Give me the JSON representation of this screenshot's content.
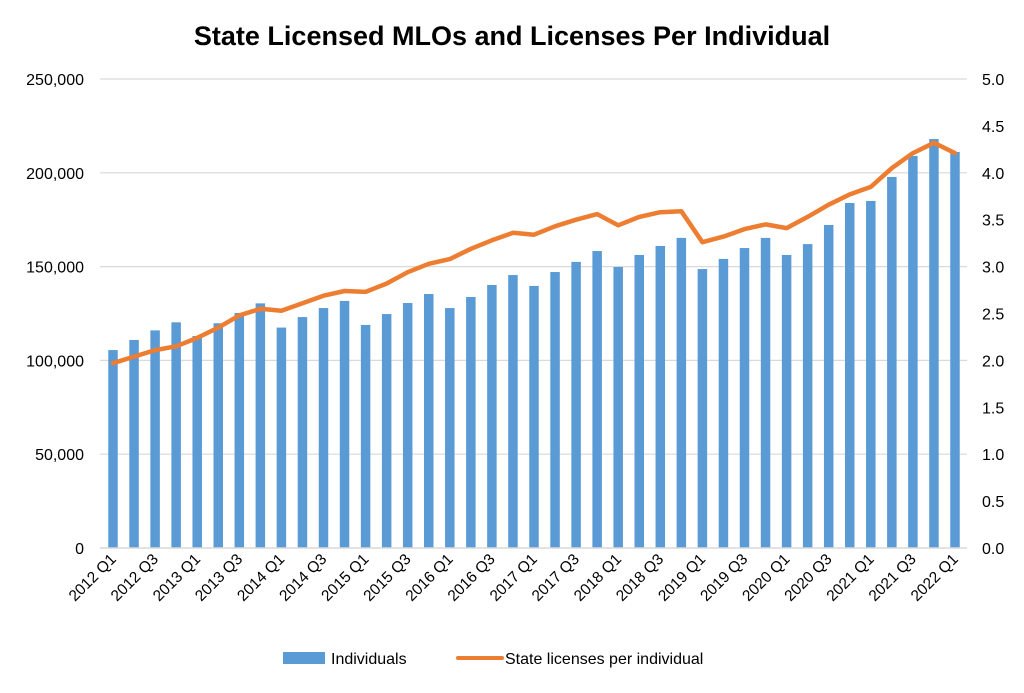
{
  "chart_data": {
    "type": "bar",
    "title": "State Licensed MLOs and Licenses Per Individual",
    "xlabel": "",
    "ylabel": "",
    "y2label": "",
    "ylim": [
      0,
      250000
    ],
    "y2lim": [
      0,
      5.0
    ],
    "yticks": [
      "0",
      "50,000",
      "100,000",
      "150,000",
      "200,000",
      "250,000"
    ],
    "ytick_values": [
      0,
      50000,
      100000,
      150000,
      200000,
      250000
    ],
    "y2ticks": [
      "0.0",
      "0.5",
      "1.0",
      "1.5",
      "2.0",
      "2.5",
      "3.0",
      "3.5",
      "4.0",
      "4.5",
      "5.0"
    ],
    "y2tick_values": [
      0,
      0.5,
      1.0,
      1.5,
      2.0,
      2.5,
      3.0,
      3.5,
      4.0,
      4.5,
      5.0
    ],
    "grid": true,
    "legend_position": "bottom",
    "categories": [
      "2012 Q1",
      "2012 Q2",
      "2012 Q3",
      "2012 Q4",
      "2013 Q1",
      "2013 Q2",
      "2013 Q3",
      "2013 Q4",
      "2014 Q1",
      "2014 Q2",
      "2014 Q3",
      "2014 Q4",
      "2015 Q1",
      "2015 Q2",
      "2015 Q3",
      "2015 Q4",
      "2016 Q1",
      "2016 Q2",
      "2016 Q3",
      "2016 Q4",
      "2017 Q1",
      "2017 Q2",
      "2017 Q3",
      "2017 Q4",
      "2018 Q1",
      "2018 Q2",
      "2018 Q3",
      "2018 Q4",
      "2019 Q1",
      "2019 Q2",
      "2019 Q3",
      "2019 Q4",
      "2020 Q1",
      "2020 Q2",
      "2020 Q3",
      "2020 Q4",
      "2021 Q1",
      "2021 Q2",
      "2021 Q3",
      "2021 Q4",
      "2022 Q1"
    ],
    "xtick_labels_shown": [
      "2012 Q1",
      "2012 Q3",
      "2013 Q1",
      "2013 Q3",
      "2014 Q1",
      "2014 Q3",
      "2015 Q1",
      "2015 Q3",
      "2016 Q1",
      "2016 Q3",
      "2017 Q1",
      "2017 Q3",
      "2018 Q1",
      "2018 Q3",
      "2019 Q1",
      "2019 Q3",
      "2020 Q1",
      "2020 Q3",
      "2021 Q1",
      "2021 Q3",
      "2022 Q1"
    ],
    "series": [
      {
        "name": "Individuals",
        "type": "bar",
        "axis": "left",
        "color": "#5B9BD5",
        "values": [
          105500,
          110900,
          116000,
          120300,
          113000,
          119800,
          125300,
          130400,
          117500,
          123100,
          127900,
          131700,
          118900,
          124700,
          130600,
          135400,
          127900,
          133800,
          140200,
          145500,
          139700,
          147100,
          152500,
          158300,
          149800,
          156200,
          161000,
          165300,
          148700,
          154100,
          159900,
          165300,
          156200,
          162000,
          172200,
          183900,
          185000,
          197800,
          209000,
          218000,
          211100
        ]
      },
      {
        "name": "State licenses per individual",
        "type": "line",
        "axis": "right",
        "color": "#ED7D31",
        "values": [
          1.97,
          2.04,
          2.11,
          2.15,
          2.24,
          2.35,
          2.48,
          2.55,
          2.53,
          2.61,
          2.69,
          2.74,
          2.73,
          2.82,
          2.94,
          3.03,
          3.08,
          3.19,
          3.28,
          3.36,
          3.34,
          3.43,
          3.5,
          3.56,
          3.44,
          3.53,
          3.58,
          3.59,
          3.26,
          3.32,
          3.4,
          3.45,
          3.41,
          3.53,
          3.66,
          3.77,
          3.85,
          4.05,
          4.21,
          4.32,
          4.21
        ]
      }
    ]
  }
}
